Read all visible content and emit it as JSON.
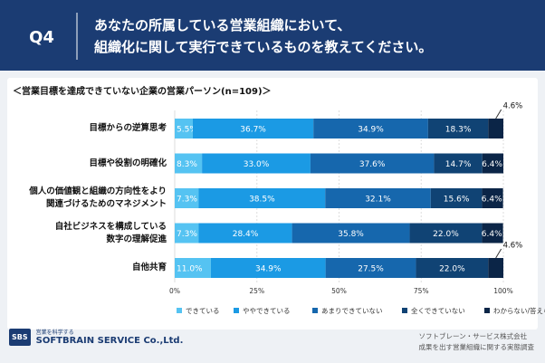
{
  "header": {
    "badge": "Q4",
    "question": "あなたの所属している営業組織において、\n組織化に関して実行できているものを教えてください。"
  },
  "chart_data": {
    "type": "stacked-bar-horizontal",
    "subtitle": "＜営業目標を達成できていない企業の営業パーソン(n=109)＞",
    "categories": [
      "目標からの逆算思考",
      "目標や役割の明確化",
      "個人の価値観と組織の方向性をより\n関連づけるためのマネジメント",
      "自社ビジネスを構成している\n数字の理解促進",
      "自他共育"
    ],
    "series": [
      {
        "name": "できている",
        "color": "#55c3f2",
        "values": [
          5.5,
          8.3,
          7.3,
          7.3,
          11.0
        ],
        "value_labels": [
          "5.5%",
          "8.3%",
          "7.3%",
          "7.3%",
          "11.0%"
        ]
      },
      {
        "name": "ややできている",
        "color": "#1b9ae4",
        "values": [
          36.7,
          33.0,
          38.5,
          28.4,
          34.9
        ],
        "value_labels": [
          "36.7%",
          "33.0%",
          "38.5%",
          "28.4%",
          "34.9%"
        ]
      },
      {
        "name": "あまりできていない",
        "color": "#1667ad",
        "values": [
          34.9,
          37.6,
          32.1,
          35.8,
          27.5
        ],
        "value_labels": [
          "34.9%",
          "37.6%",
          "32.1%",
          "35.8%",
          "27.5%"
        ]
      },
      {
        "name": "全くできていない",
        "color": "#104374",
        "values": [
          18.3,
          14.7,
          15.6,
          22.0,
          22.0
        ],
        "value_labels": [
          "18.3%",
          "14.7%",
          "15.6%",
          "22.0%",
          "22.0%"
        ]
      },
      {
        "name": "わからない/答えられない",
        "color": "#0b2547",
        "values": [
          4.6,
          6.4,
          6.4,
          6.4,
          4.6
        ],
        "value_labels": [
          "4.6%",
          "6.4%",
          "6.4%",
          "6.4%",
          "4.6%"
        ]
      }
    ],
    "xlim": [
      0,
      100
    ],
    "xticks": [
      {
        "value": 0,
        "label": "0%"
      },
      {
        "value": 25,
        "label": "25%"
      },
      {
        "value": 50,
        "label": "50%"
      },
      {
        "value": 75,
        "label": "75%"
      },
      {
        "value": 100,
        "label": "100%"
      }
    ]
  },
  "footer": {
    "tagline": "営業を科学する",
    "logo": "SBS",
    "company_en": "SOFTBRAIN SERVICE Co.,Ltd.",
    "company": "ソフトブレーン・サービス株式会社",
    "survey": "成果を出す営業組織に関する実態調査"
  }
}
